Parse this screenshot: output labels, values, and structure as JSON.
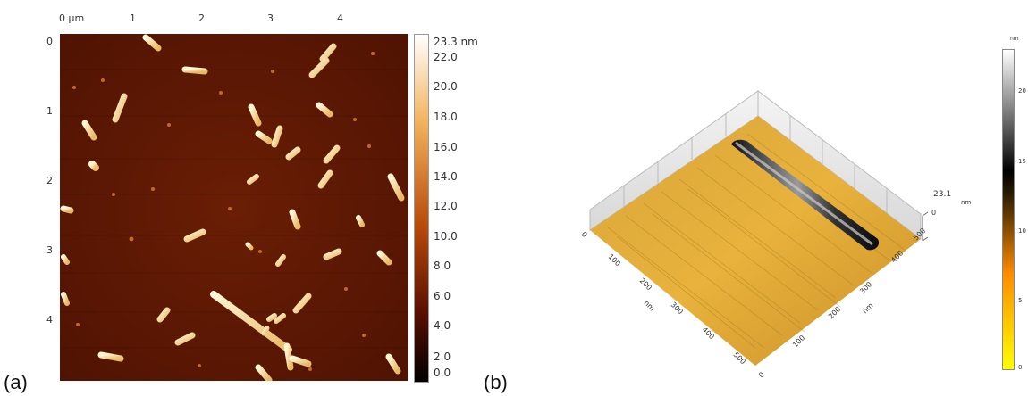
{
  "panel_a": {
    "letter": "(a)",
    "x_ticks": [
      "0 µm",
      "1",
      "2",
      "3",
      "4"
    ],
    "y_ticks": [
      "0",
      "1",
      "2",
      "3",
      "4"
    ],
    "colorbar": {
      "max_label": "23.3 nm",
      "ticks": [
        "22.0",
        "20.0",
        "18.0",
        "16.0",
        "14.0",
        "12.0",
        "10.0",
        "8.0",
        "6.0",
        "4.0",
        "2.0",
        "0.0"
      ],
      "colors": [
        "#000000",
        "#5a1000",
        "#b84a0a",
        "#f3b35c",
        "#ffffff"
      ]
    }
  },
  "panel_b": {
    "letter": "(b)",
    "height_label": "23.1",
    "height_unit": "nm",
    "height_zero": "0",
    "left_axis_ticks": [
      "0",
      "100",
      "200",
      "300",
      "400",
      "500"
    ],
    "left_axis_unit": "nm",
    "right_axis_ticks": [
      "0",
      "100",
      "200",
      "300",
      "400",
      "500"
    ],
    "right_axis_unit": "nm",
    "colorbar": {
      "unit": "nm",
      "ticks": [
        "20",
        "15",
        "10",
        "5",
        "0"
      ],
      "colors": [
        "#ffff00",
        "#ff8c00",
        "#2a1b00",
        "#000000",
        "#ffffff"
      ]
    }
  }
}
